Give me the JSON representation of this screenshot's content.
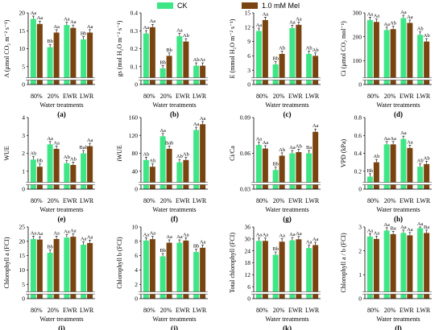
{
  "legend": {
    "position": "top-center",
    "items": [
      {
        "label": "CK",
        "color": "#3ee686"
      },
      {
        "label": "1.0 mM Mel",
        "color": "#7a4410"
      }
    ]
  },
  "chart_data": [
    {
      "panel": "(a)",
      "type": "bar",
      "ylabel": "A (μmol CO₂ m⁻² s⁻¹)",
      "xlabel": "Water treatments",
      "categories": [
        "80%",
        "20%",
        "EWR",
        "LWR"
      ],
      "ylim": [
        0,
        20
      ],
      "yticks": [
        0,
        5,
        10,
        15,
        20
      ],
      "series": [
        {
          "name": "CK",
          "values": [
            18.3,
            10.4,
            16.6,
            12.6
          ],
          "labels": [
            "Aa",
            "Bb",
            "Aa",
            "Bb"
          ]
        },
        {
          "name": "1.0 mM Mel",
          "values": [
            16.9,
            14.5,
            15.8,
            14.5
          ],
          "labels": [
            "Aa",
            "Aa",
            "Aa",
            "Aa"
          ]
        }
      ]
    },
    {
      "panel": "(b)",
      "type": "bar",
      "ylabel": "gs (mol H₂O m⁻² s⁻¹)",
      "xlabel": "Water treatments",
      "categories": [
        "80%",
        "20%",
        "EWR",
        "LWR"
      ],
      "ylim": [
        0,
        0.4
      ],
      "yticks": [
        0,
        0.1,
        0.2,
        0.3,
        0.4
      ],
      "series": [
        {
          "name": "CK",
          "values": [
            0.285,
            0.09,
            0.27,
            0.105
          ],
          "labels": [
            "Aa",
            "Bb",
            "Aa",
            "Ab"
          ]
        },
        {
          "name": "1.0 mM Mel",
          "values": [
            0.32,
            0.16,
            0.24,
            0.105
          ],
          "labels": [
            "Aa",
            "Bb",
            "Ab",
            "Ac"
          ]
        }
      ]
    },
    {
      "panel": "(c)",
      "type": "bar",
      "ylabel": "E (mmol H₂O m⁻² s⁻¹)",
      "xlabel": "Water treatments",
      "categories": [
        "80%",
        "20%",
        "EWR",
        "LWR"
      ],
      "ylim": [
        0,
        15
      ],
      "yticks": [
        0,
        3,
        6,
        9,
        12,
        15
      ],
      "series": [
        {
          "name": "CK",
          "values": [
            11.2,
            4.2,
            11.8,
            6.4
          ],
          "labels": [
            "Aa",
            "Bb",
            "Aa",
            "Ab"
          ]
        },
        {
          "name": "1.0 mM Mel",
          "values": [
            13.5,
            6.4,
            12.5,
            6.0
          ],
          "labels": [
            "Aa",
            "Ab",
            "Aa",
            "Ab"
          ]
        }
      ]
    },
    {
      "panel": "(d)",
      "type": "bar",
      "ylabel": "Ci (μmol CO₂ mol⁻¹)",
      "xlabel": "Water treatments",
      "categories": [
        "80%",
        "20%",
        "EWR",
        "LWR"
      ],
      "ylim": [
        0,
        300
      ],
      "yticks": [
        0,
        100,
        200,
        300
      ],
      "series": [
        {
          "name": "CK",
          "values": [
            270,
            228,
            278,
            208
          ],
          "labels": [
            "Aa",
            "Aa",
            "Aa",
            "Ab"
          ]
        },
        {
          "name": "1.0 mM Mel",
          "values": [
            262,
            232,
            258,
            180
          ],
          "labels": [
            "Aa",
            "Ab",
            "Aa",
            "Ab"
          ]
        }
      ]
    },
    {
      "panel": "(e)",
      "type": "bar",
      "ylabel": "WUE",
      "xlabel": "Water treatments",
      "categories": [
        "80%",
        "20%",
        "EWR",
        "LWR"
      ],
      "ylim": [
        0,
        4
      ],
      "yticks": [
        0,
        1,
        2,
        3,
        4
      ],
      "series": [
        {
          "name": "CK",
          "values": [
            1.65,
            2.5,
            1.45,
            2.0
          ],
          "labels": [
            "Ab",
            "Aa",
            "Ab",
            "Bab"
          ]
        },
        {
          "name": "1.0 mM Mel",
          "values": [
            1.25,
            2.25,
            1.35,
            2.4
          ],
          "labels": [
            "Bb",
            "Aa",
            "Ab",
            "Aa"
          ]
        }
      ]
    },
    {
      "panel": "(f)",
      "type": "bar",
      "ylabel": "iWUE",
      "xlabel": "Water treatments",
      "categories": [
        "80%",
        "20%",
        "EWR",
        "LWR"
      ],
      "ylim": [
        0,
        160
      ],
      "yticks": [
        0,
        40,
        80,
        120,
        160
      ],
      "series": [
        {
          "name": "CK",
          "values": [
            65,
            118,
            60,
            132
          ],
          "labels": [
            "Ab",
            "Aa",
            "Ab",
            "Aa"
          ]
        },
        {
          "name": "1.0 mM Mel",
          "values": [
            50,
            90,
            65,
            145
          ],
          "labels": [
            "Ab",
            "Bab",
            "Ab",
            "Aa"
          ]
        }
      ]
    },
    {
      "panel": "(g)",
      "type": "bar",
      "ylabel": "Ci/Ca",
      "xlabel": "Water treatments",
      "categories": [
        "80%",
        "20%",
        "EWR",
        "LWR"
      ],
      "ylim": [
        0.03,
        0.09
      ],
      "yticks": [
        0.03,
        0.06,
        0.09
      ],
      "series": [
        {
          "name": "CK",
          "values": [
            0.067,
            0.046,
            0.06,
            0.06
          ],
          "labels": [
            "Aa",
            "Bb",
            "Aa",
            "Ba"
          ]
        },
        {
          "name": "1.0 mM Mel",
          "values": [
            0.064,
            0.058,
            0.061,
            0.078
          ],
          "labels": [
            "Aa",
            "Ab",
            "Ab",
            "Aa"
          ]
        }
      ]
    },
    {
      "panel": "(h)",
      "type": "bar",
      "ylabel": "VPD (kPa)",
      "xlabel": "Water treatments",
      "categories": [
        "80%",
        "20%",
        "EWR",
        "LWR"
      ],
      "ylim": [
        0,
        0.8
      ],
      "yticks": [
        0,
        0.2,
        0.4,
        0.6,
        0.8
      ],
      "series": [
        {
          "name": "CK",
          "values": [
            0.14,
            0.5,
            0.56,
            0.25
          ],
          "labels": [
            "Bb",
            "Aa",
            "Aa",
            "Ab"
          ]
        },
        {
          "name": "1.0 mM Mel",
          "values": [
            0.3,
            0.5,
            0.46,
            0.28
          ],
          "labels": [
            "Ab",
            "Aa",
            "Aa",
            "Ab"
          ]
        }
      ]
    },
    {
      "panel": "(i)",
      "type": "bar",
      "ylabel": "Chlorophyll a (FCI)",
      "xlabel": "Water treatments",
      "categories": [
        "80%",
        "20%",
        "EWR",
        "LWR"
      ],
      "ylim": [
        0,
        25
      ],
      "yticks": [
        0,
        5,
        10,
        15,
        20,
        25
      ],
      "series": [
        {
          "name": "CK",
          "values": [
            20.8,
            16.0,
            21.3,
            18.8
          ],
          "labels": [
            "Aa",
            "Bb",
            "Aa",
            "Aa"
          ]
        },
        {
          "name": "1.0 mM Mel",
          "values": [
            20.6,
            20.8,
            21.6,
            19.4
          ],
          "labels": [
            "Aa",
            "Aa",
            "Aa",
            "Aa"
          ]
        }
      ]
    },
    {
      "panel": "(j)",
      "type": "bar",
      "ylabel": "Chlorophyll b (FCI)",
      "xlabel": "Water treatments",
      "categories": [
        "80%",
        "20%",
        "EWR",
        "LWR"
      ],
      "ylim": [
        0,
        10
      ],
      "yticks": [
        0,
        2,
        4,
        6,
        8,
        10
      ],
      "series": [
        {
          "name": "CK",
          "values": [
            8.1,
            5.9,
            7.8,
            6.5
          ],
          "labels": [
            "Aa",
            "Bb",
            "Aa",
            "Bb"
          ]
        },
        {
          "name": "1.0 mM Mel",
          "values": [
            8.3,
            7.8,
            8.1,
            7.1
          ],
          "labels": [
            "Aa",
            "Aa",
            "Aa",
            "Aa"
          ]
        }
      ]
    },
    {
      "panel": "(k)",
      "type": "bar",
      "ylabel": "Total chlorophyll (FCI)",
      "xlabel": "Water treatments",
      "categories": [
        "80%",
        "20%",
        "EWR",
        "LWR"
      ],
      "ylim": [
        0,
        36
      ],
      "yticks": [
        0,
        6,
        12,
        18,
        24,
        30,
        36
      ],
      "series": [
        {
          "name": "CK",
          "values": [
            29.0,
            22.0,
            29.3,
            25.4
          ],
          "labels": [
            "Aa",
            "Bb",
            "Aa",
            "Aa"
          ]
        },
        {
          "name": "1.0 mM Mel",
          "values": [
            29.0,
            28.6,
            29.8,
            26.9
          ],
          "labels": [
            "Aa",
            "Aa",
            "Aa",
            "Aa"
          ]
        }
      ]
    },
    {
      "panel": "(l)",
      "type": "bar",
      "ylabel": "Chlorophyll a / b (FCI)",
      "xlabel": "Water treatments",
      "categories": [
        "80%",
        "20%",
        "EWR",
        "LWR"
      ],
      "ylim": [
        0,
        3
      ],
      "yticks": [
        0,
        1,
        2,
        3
      ],
      "series": [
        {
          "name": "CK",
          "values": [
            2.6,
            2.85,
            2.75,
            2.95
          ],
          "labels": [
            "Aa",
            "Aa",
            "Aa",
            "Aa"
          ]
        },
        {
          "name": "1.0 mM Mel",
          "values": [
            2.5,
            2.7,
            2.65,
            2.75
          ],
          "labels": [
            "Aa",
            "Ba",
            "Aa",
            "Ba"
          ]
        }
      ]
    }
  ]
}
